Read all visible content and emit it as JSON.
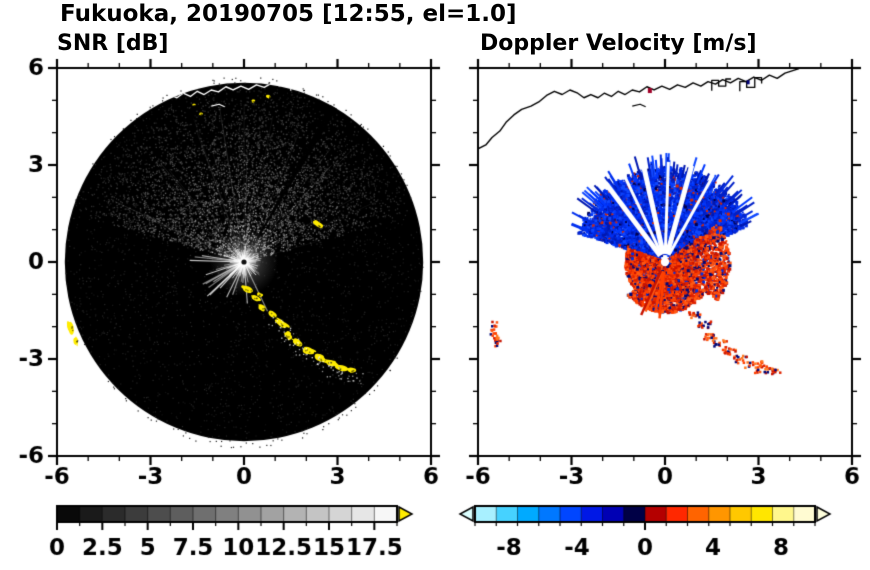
{
  "figure_title": "Fukuoka, 20190705 [12:55, el=1.0]",
  "map": {
    "coastline": [
      [
        -6.0,
        3.5
      ],
      [
        -5.75,
        3.62
      ],
      [
        -5.55,
        3.85
      ],
      [
        -5.3,
        4.05
      ],
      [
        -5.1,
        4.32
      ],
      [
        -4.85,
        4.55
      ],
      [
        -4.6,
        4.72
      ],
      [
        -4.3,
        4.82
      ],
      [
        -4.05,
        4.95
      ],
      [
        -3.8,
        5.15
      ],
      [
        -3.55,
        5.28
      ],
      [
        -3.3,
        5.18
      ],
      [
        -3.05,
        5.32
      ],
      [
        -2.8,
        5.22
      ],
      [
        -2.6,
        5.08
      ],
      [
        -2.38,
        5.18
      ],
      [
        -2.15,
        5.08
      ],
      [
        -1.95,
        5.22
      ],
      [
        -1.72,
        5.12
      ],
      [
        -1.5,
        5.28
      ],
      [
        -1.28,
        5.18
      ],
      [
        -1.05,
        5.32
      ],
      [
        -0.82,
        5.26
      ],
      [
        -0.58,
        5.42
      ],
      [
        -0.35,
        5.32
      ],
      [
        -0.1,
        5.44
      ],
      [
        0.15,
        5.34
      ],
      [
        0.4,
        5.48
      ],
      [
        0.65,
        5.4
      ],
      [
        0.9,
        5.54
      ],
      [
        1.15,
        5.44
      ],
      [
        1.38,
        5.58
      ],
      [
        1.62,
        5.5
      ],
      [
        1.85,
        5.64
      ],
      [
        2.1,
        5.54
      ],
      [
        2.35,
        5.68
      ],
      [
        2.6,
        5.58
      ],
      [
        2.85,
        5.72
      ],
      [
        3.1,
        5.62
      ],
      [
        3.35,
        5.78
      ],
      [
        3.6,
        5.68
      ],
      [
        3.85,
        5.84
      ],
      [
        4.1,
        5.92
      ],
      [
        4.3,
        5.98
      ]
    ],
    "ports": [
      [
        [
          1.5,
          5.3
        ],
        [
          1.5,
          5.62
        ],
        [
          1.72,
          5.62
        ],
        [
          1.72,
          5.44
        ],
        [
          1.95,
          5.44
        ],
        [
          1.95,
          5.66
        ],
        [
          2.12,
          5.66
        ]
      ],
      [
        [
          2.4,
          5.28
        ],
        [
          2.4,
          5.58
        ],
        [
          2.62,
          5.58
        ],
        [
          2.62,
          5.4
        ],
        [
          2.88,
          5.4
        ],
        [
          2.88,
          5.7
        ],
        [
          3.1,
          5.7
        ],
        [
          3.1,
          5.52
        ]
      ]
    ],
    "island": [
      [
        -1.05,
        4.82
      ],
      [
        -0.8,
        4.88
      ],
      [
        -0.62,
        4.8
      ]
    ],
    "clutter_arc": [
      [
        0.12,
        -0.85,
        0.3,
        0.16,
        -20
      ],
      [
        0.38,
        -1.12,
        0.26,
        0.13,
        -25
      ],
      [
        0.58,
        -1.4,
        0.22,
        0.12,
        -30
      ],
      [
        0.5,
        -1.02,
        0.16,
        0.09,
        -20
      ],
      [
        0.92,
        -1.62,
        0.26,
        0.13,
        -30
      ],
      [
        1.22,
        -1.92,
        0.32,
        0.15,
        -35
      ],
      [
        1.42,
        -2.28,
        0.26,
        0.13,
        -42
      ],
      [
        1.72,
        -2.5,
        0.3,
        0.14,
        -30
      ],
      [
        2.08,
        -2.74,
        0.34,
        0.16,
        -25
      ],
      [
        2.44,
        -2.98,
        0.32,
        0.15,
        -20
      ],
      [
        2.8,
        -3.12,
        0.36,
        0.14,
        -15
      ],
      [
        3.14,
        -3.28,
        0.38,
        0.15,
        -12
      ],
      [
        3.46,
        -3.34,
        0.26,
        0.12,
        -8
      ],
      [
        -5.55,
        -2.05,
        0.16,
        0.34,
        8
      ],
      [
        -5.4,
        -2.44,
        0.13,
        0.18,
        0
      ]
    ]
  },
  "chart_data": [
    {
      "type": "heatmap",
      "title": "SNR [dB]",
      "xlabel": "",
      "ylabel": "",
      "xlim": [
        -6,
        6
      ],
      "ylim": [
        -6,
        6
      ],
      "xticks": [
        -6,
        -3,
        0,
        3,
        6
      ],
      "xtick_labels": [
        "-6",
        "-3",
        "0",
        "3",
        "6"
      ],
      "yticks": [
        6,
        3,
        0,
        -3,
        -6
      ],
      "ytick_labels": [
        "6",
        "3",
        "0",
        "-3",
        "-6"
      ],
      "minor_step": 1,
      "grid": false,
      "colorbar": {
        "range": [
          0,
          18.75
        ],
        "tick_step": 1.25,
        "label_values": [
          0,
          2.5,
          5,
          7.5,
          10,
          12.5,
          15,
          17.5
        ],
        "labels": [
          "0",
          "2.5",
          "5",
          "7.5",
          "10",
          "12.5",
          "15",
          "17.5"
        ],
        "start_color": "#000000",
        "end_color": "#ffffff",
        "over_arrow_color": "#ffec00"
      },
      "scene": {
        "background": "#000000",
        "disk_radius": 5.75,
        "echo_fan": {
          "angle_min": -75,
          "angle_max": 75,
          "max_radius": 5.5
        },
        "dark_ray_angle": 30,
        "clutter_color": "#ffec00",
        "coast_color": "#ffffff",
        "extra_blobs": [
          [
            2.35,
            1.18,
            0.28,
            0.11,
            -32
          ],
          [
            0.3,
            4.98,
            0.1,
            0.07,
            0
          ],
          [
            0.78,
            5.12,
            0.12,
            0.08,
            0
          ],
          [
            -1.38,
            4.58,
            0.1,
            0.07,
            0
          ],
          [
            -1.6,
            4.86,
            0.08,
            0.06,
            0
          ]
        ]
      }
    },
    {
      "type": "heatmap",
      "title": "Doppler Velocity [m/s]",
      "xlabel": "",
      "ylabel": "",
      "xlim": [
        -6,
        6
      ],
      "ylim": [
        -6,
        6
      ],
      "xticks": [
        -6,
        -3,
        0,
        3,
        6
      ],
      "xtick_labels": [
        "-6",
        "-3",
        "0",
        "3",
        "6"
      ],
      "yticks": [
        6,
        3,
        0,
        -3,
        -6
      ],
      "ytick_labels": [
        "6",
        "3",
        "0",
        "-3",
        "-6"
      ],
      "minor_step": 1,
      "grid": false,
      "colorbar": {
        "range": [
          -10,
          10
        ],
        "tick_step": 1.25,
        "label_values": [
          -8,
          -4,
          0,
          4,
          8
        ],
        "labels": [
          "-8",
          "-4",
          "0",
          "4",
          "8"
        ],
        "colors": [
          "#a8f0ff",
          "#46d2ff",
          "#00aaff",
          "#0078ff",
          "#0046ff",
          "#0018e6",
          "#0000b4",
          "#000046",
          "#b40000",
          "#ff2800",
          "#ff6400",
          "#ff9600",
          "#ffc800",
          "#ffe600",
          "#fff78c",
          "#fffbd2"
        ],
        "under_arrow_color": "#dcffff",
        "over_arrow_color": "#ffffdc"
      },
      "scene": {
        "coast_color": "#000000",
        "fan": {
          "angle_min": -72,
          "angle_max": 68,
          "max_radius": 2.95
        },
        "gap_angles": [
          -38,
          -26,
          -13,
          2,
          16,
          30
        ],
        "red_region": {
          "angle_min": 55,
          "angle_max": 290,
          "max_radius": 1.45
        },
        "blue_palette": [
          "#0028dc",
          "#0038ff",
          "#0018b0",
          "#0030f0",
          "#1048ff",
          "#0020c8"
        ],
        "red_palette": [
          "#e02400",
          "#ff4000",
          "#c81400",
          "#ff5a14"
        ],
        "arc_from": 4
      }
    }
  ]
}
